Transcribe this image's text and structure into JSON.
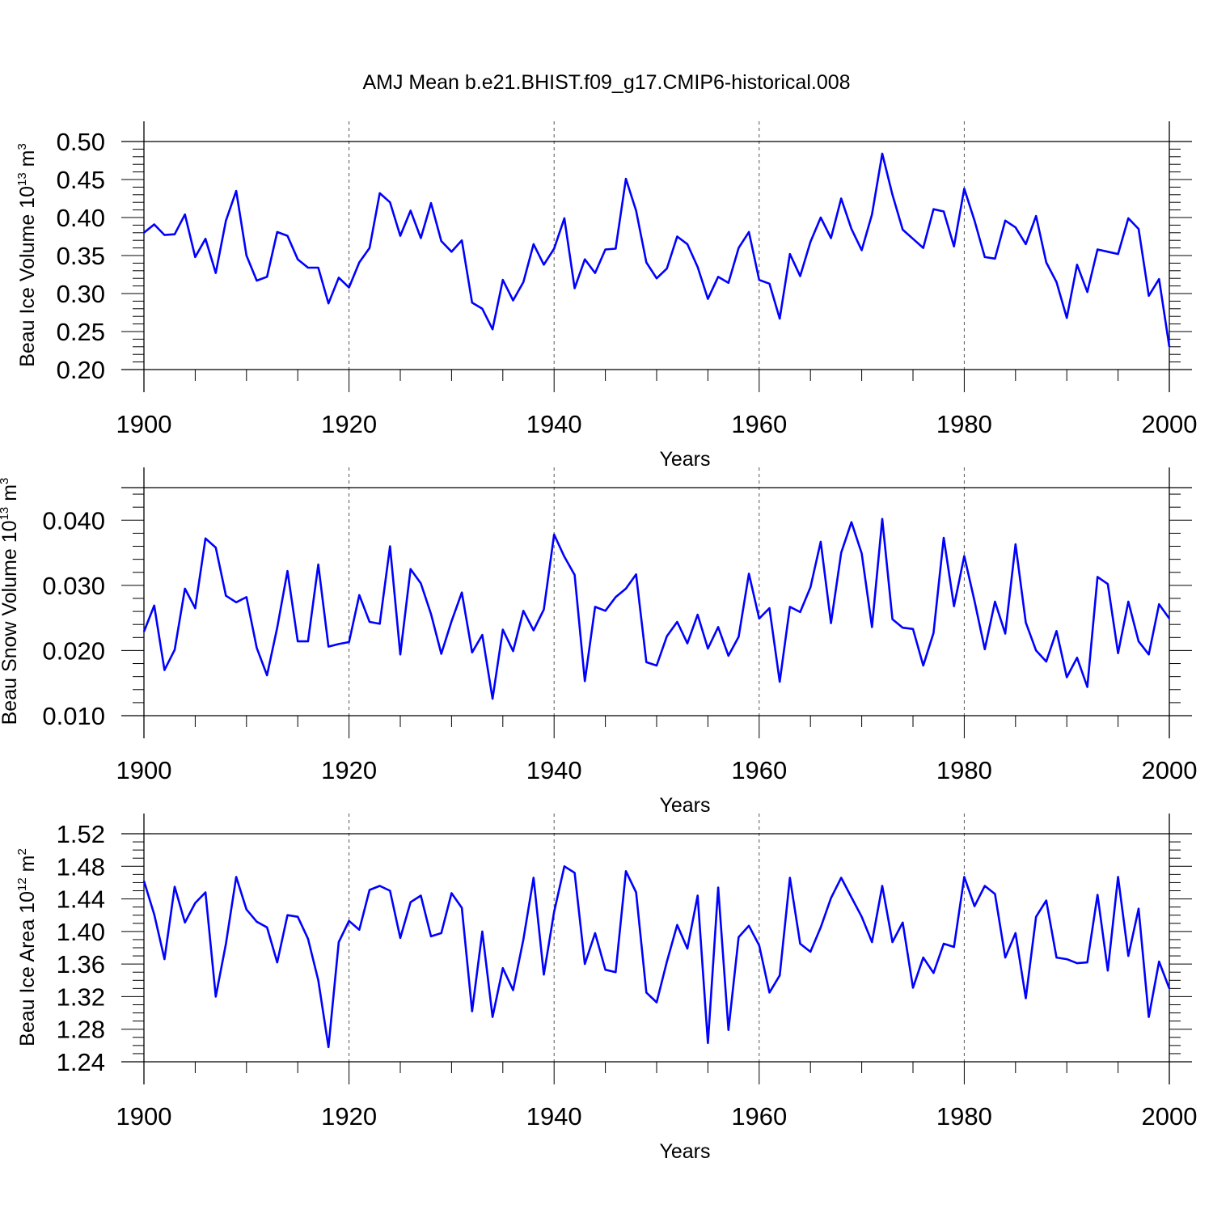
{
  "figure": {
    "title": "AMJ Mean b.e21.BHIST.f09_g17.CMIP6-historical.008"
  },
  "colors": {
    "series_line": "#0000ff",
    "axis": "#000000",
    "grid": "#555555",
    "background": "#ffffff"
  },
  "chart_data": [
    {
      "type": "line",
      "name": "ice-volume",
      "xlabel": "Years",
      "ylabel_text": "Beau Ice Volume 10",
      "ylabel_exp": "13",
      "ylabel_unit": " m",
      "ylabel_unit_exp": "3",
      "x_start": 1900,
      "x_end": 2000,
      "xlim": [
        1900,
        2000
      ],
      "ylim": [
        0.2,
        0.5
      ],
      "ymax_frame": 0.5,
      "xticks": [
        1900,
        1920,
        1940,
        1960,
        1980,
        2000
      ],
      "xtick_labels": [
        "1900",
        "1920",
        "1940",
        "1960",
        "1980",
        "2000"
      ],
      "yticks": [
        0.2,
        0.25,
        0.3,
        0.35,
        0.4,
        0.45,
        0.5
      ],
      "ytick_labels": [
        "0.20",
        "0.25",
        "0.30",
        "0.35",
        "0.40",
        "0.45",
        "0.50"
      ],
      "y_minor_step": 0.01,
      "grid_x": [
        1920,
        1940,
        1960,
        1980
      ],
      "values": [
        0.38,
        0.391,
        0.377,
        0.378,
        0.404,
        0.348,
        0.372,
        0.327,
        0.396,
        0.435,
        0.35,
        0.317,
        0.322,
        0.381,
        0.376,
        0.345,
        0.334,
        0.334,
        0.287,
        0.321,
        0.308,
        0.341,
        0.36,
        0.432,
        0.42,
        0.376,
        0.409,
        0.373,
        0.419,
        0.369,
        0.355,
        0.37,
        0.288,
        0.28,
        0.253,
        0.318,
        0.291,
        0.315,
        0.365,
        0.338,
        0.359,
        0.399,
        0.307,
        0.345,
        0.327,
        0.358,
        0.359,
        0.451,
        0.409,
        0.341,
        0.32,
        0.333,
        0.375,
        0.365,
        0.335,
        0.293,
        0.322,
        0.314,
        0.36,
        0.381,
        0.318,
        0.313,
        0.267,
        0.352,
        0.323,
        0.368,
        0.4,
        0.373,
        0.425,
        0.385,
        0.357,
        0.404,
        0.484,
        0.43,
        0.384,
        0.372,
        0.36,
        0.411,
        0.408,
        0.362,
        0.438,
        0.396,
        0.348,
        0.346,
        0.396,
        0.387,
        0.365,
        0.402,
        0.341,
        0.315,
        0.268,
        0.338,
        0.302,
        0.358,
        0.355,
        0.352,
        0.399,
        0.385,
        0.297,
        0.319,
        0.23
      ]
    },
    {
      "type": "line",
      "name": "snow-volume",
      "xlabel": "Years",
      "ylabel_text": "Beau Snow Volume 10",
      "ylabel_exp": "13",
      "ylabel_unit": " m",
      "ylabel_unit_exp": "3",
      "x_start": 1900,
      "x_end": 2000,
      "xlim": [
        1900,
        2000
      ],
      "ylim": [
        0.01,
        0.045
      ],
      "ymax_frame": 0.045,
      "xticks": [
        1900,
        1920,
        1940,
        1960,
        1980,
        2000
      ],
      "xtick_labels": [
        "1900",
        "1920",
        "1940",
        "1960",
        "1980",
        "2000"
      ],
      "yticks": [
        0.01,
        0.02,
        0.03,
        0.04
      ],
      "ytick_labels": [
        "0.010",
        "0.020",
        "0.030",
        "0.040"
      ],
      "y_minor_step": 0.002,
      "grid_x": [
        1920,
        1940,
        1960,
        1980
      ],
      "values": [
        0.0229,
        0.0269,
        0.017,
        0.0201,
        0.0295,
        0.0265,
        0.0372,
        0.0358,
        0.0284,
        0.0274,
        0.0282,
        0.0204,
        0.0162,
        0.0235,
        0.0322,
        0.0214,
        0.0214,
        0.0332,
        0.0206,
        0.021,
        0.0213,
        0.0285,
        0.0244,
        0.0241,
        0.036,
        0.0194,
        0.0325,
        0.0303,
        0.0256,
        0.0195,
        0.0245,
        0.0289,
        0.0197,
        0.0224,
        0.0126,
        0.0232,
        0.0199,
        0.0261,
        0.0231,
        0.0263,
        0.0378,
        0.0344,
        0.0316,
        0.0153,
        0.0267,
        0.0261,
        0.0282,
        0.0295,
        0.0317,
        0.0182,
        0.0177,
        0.0222,
        0.0244,
        0.0211,
        0.0255,
        0.0203,
        0.0236,
        0.0192,
        0.0221,
        0.0318,
        0.0249,
        0.0265,
        0.0152,
        0.0267,
        0.0259,
        0.0297,
        0.0367,
        0.0242,
        0.035,
        0.0397,
        0.0349,
        0.0236,
        0.0402,
        0.0248,
        0.0235,
        0.0233,
        0.0177,
        0.0227,
        0.0373,
        0.0268,
        0.0345,
        0.0276,
        0.0202,
        0.0275,
        0.0226,
        0.0363,
        0.0243,
        0.02,
        0.0183,
        0.023,
        0.0159,
        0.0189,
        0.0144,
        0.0313,
        0.0302,
        0.0196,
        0.0275,
        0.0214,
        0.0194,
        0.0271,
        0.0249
      ]
    },
    {
      "type": "line",
      "name": "ice-area",
      "xlabel": "Years",
      "ylabel_text": "Beau Ice Area 10",
      "ylabel_exp": "12",
      "ylabel_unit": " m",
      "ylabel_unit_exp": "2",
      "x_start": 1900,
      "x_end": 2000,
      "xlim": [
        1900,
        2000
      ],
      "ylim": [
        1.24,
        1.52
      ],
      "ymax_frame": 1.52,
      "xticks": [
        1900,
        1920,
        1940,
        1960,
        1980,
        2000
      ],
      "xtick_labels": [
        "1900",
        "1920",
        "1940",
        "1960",
        "1980",
        "2000"
      ],
      "yticks": [
        1.24,
        1.28,
        1.32,
        1.36,
        1.4,
        1.44,
        1.48,
        1.52
      ],
      "ytick_labels": [
        "1.24",
        "1.28",
        "1.32",
        "1.36",
        "1.40",
        "1.44",
        "1.48",
        "1.52"
      ],
      "y_minor_step": 0.01,
      "grid_x": [
        1920,
        1940,
        1960,
        1980
      ],
      "values": [
        1.462,
        1.421,
        1.366,
        1.455,
        1.411,
        1.435,
        1.448,
        1.32,
        1.385,
        1.467,
        1.427,
        1.412,
        1.405,
        1.362,
        1.42,
        1.418,
        1.391,
        1.34,
        1.258,
        1.387,
        1.413,
        1.402,
        1.451,
        1.456,
        1.45,
        1.392,
        1.436,
        1.444,
        1.394,
        1.398,
        1.447,
        1.429,
        1.302,
        1.4,
        1.295,
        1.355,
        1.328,
        1.39,
        1.466,
        1.347,
        1.424,
        1.48,
        1.472,
        1.36,
        1.398,
        1.353,
        1.35,
        1.474,
        1.448,
        1.325,
        1.313,
        1.363,
        1.408,
        1.379,
        1.444,
        1.263,
        1.454,
        1.279,
        1.393,
        1.407,
        1.383,
        1.325,
        1.346,
        1.466,
        1.385,
        1.375,
        1.405,
        1.441,
        1.466,
        1.442,
        1.418,
        1.387,
        1.456,
        1.387,
        1.411,
        1.331,
        1.368,
        1.349,
        1.385,
        1.381,
        1.467,
        1.431,
        1.456,
        1.446,
        1.368,
        1.398,
        1.318,
        1.418,
        1.438,
        1.368,
        1.366,
        1.361,
        1.362,
        1.445,
        1.352,
        1.467,
        1.37,
        1.428,
        1.295,
        1.363,
        1.33
      ]
    }
  ]
}
